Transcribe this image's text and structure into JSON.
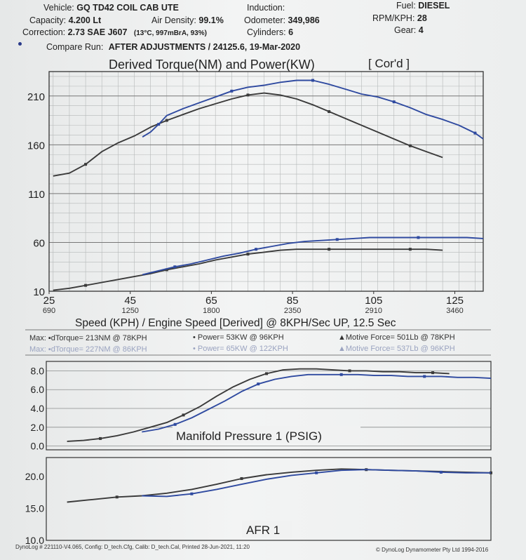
{
  "header": {
    "vehicle_label": "Vehicle:",
    "vehicle": "GQ TD42 COIL CAB UTE",
    "capacity_label": "Capacity:",
    "capacity": "4.200 Lt",
    "correction_label": "Correction:",
    "correction": "2.73 SAE J607",
    "correction_cond": "(13°C, 997mBrA, 93%)",
    "air_density_label": "Air Density:",
    "air_density": "99.1%",
    "induction_label": "Induction:",
    "odometer_label": "Odometer:",
    "odometer": "349,986",
    "cylinders_label": "Cylinders:",
    "cylinders": "6",
    "fuel_label": "Fuel:",
    "fuel": "DIESEL",
    "rpm_kph_label": "RPM/KPH:",
    "rpm_kph": "28",
    "gear_label": "Gear:",
    "gear": "4",
    "compare_label": "Compare Run:",
    "compare_run": "AFTER ADJUSTMENTS / 24125.6, 19-Mar-2020"
  },
  "chart_data": [
    {
      "type": "line",
      "title": "Derived Torque(NM) and Power(KW)",
      "title_note": "[ Cor'd ]",
      "xlabel": "Speed (KPH) / Engine Speed [Derived] @ 8KPH/Sec UP, 12.5 Sec",
      "xticks": [
        25,
        45,
        65,
        85,
        105,
        125
      ],
      "xticks_rpm": [
        "690",
        "1250",
        "1800",
        "2350",
        "2910",
        "3460"
      ],
      "xlim": [
        25,
        132
      ],
      "yticks": [
        10,
        60,
        110,
        160,
        210
      ],
      "ylim": [
        10,
        235
      ],
      "grid": true,
      "series": [
        {
          "color": "#3a3a3a",
          "x": [
            26,
            30,
            34,
            38,
            42,
            46,
            50,
            54,
            58,
            62,
            66,
            70,
            74,
            78,
            82,
            86,
            90,
            94,
            98,
            102,
            106,
            110,
            114,
            118,
            122
          ],
          "y": [
            128,
            131,
            140,
            153,
            162,
            169,
            178,
            185,
            191,
            197,
            202,
            207,
            211,
            213,
            211,
            207,
            201,
            194,
            187,
            180,
            173,
            166,
            159,
            153,
            147
          ]
        },
        {
          "color": "#2f4aa0",
          "x": [
            48,
            50,
            52,
            54,
            58,
            62,
            66,
            70,
            74,
            78,
            82,
            86,
            90,
            94,
            98,
            102,
            106,
            110,
            114,
            118,
            122,
            126,
            130,
            132
          ],
          "y": [
            168,
            173,
            181,
            190,
            197,
            203,
            209,
            215,
            219,
            221,
            224,
            226,
            226,
            222,
            217,
            212,
            209,
            204,
            198,
            191,
            186,
            180,
            172,
            166
          ]
        },
        {
          "color": "#3a3a3a",
          "x": [
            26,
            30,
            34,
            38,
            42,
            46,
            50,
            54,
            58,
            62,
            66,
            70,
            74,
            78,
            82,
            86,
            90,
            94,
            98,
            102,
            106,
            110,
            114,
            118,
            122
          ],
          "y": [
            11,
            13,
            16,
            19,
            22,
            25,
            28,
            32,
            35,
            38,
            42,
            45,
            48,
            50,
            52,
            53,
            53,
            53,
            53,
            53,
            53,
            53,
            53,
            53,
            52
          ]
        },
        {
          "color": "#2f4aa0",
          "x": [
            48,
            52,
            56,
            60,
            64,
            68,
            72,
            76,
            80,
            84,
            88,
            92,
            96,
            100,
            104,
            108,
            112,
            116,
            120,
            124,
            128,
            132
          ],
          "y": [
            27,
            31,
            35,
            38,
            42,
            46,
            49,
            53,
            56,
            59,
            61,
            62,
            63,
            64,
            65,
            65,
            65,
            65,
            65,
            65,
            65,
            64
          ]
        }
      ]
    },
    {
      "type": "line",
      "title": "Manifold Pressure 1 (PSIG)",
      "yticks": [
        0.0,
        2.0,
        4.0,
        6.0,
        8.0
      ],
      "ytick_labels": [
        "0.0",
        "2.0",
        "4.0",
        "6.0",
        "8.0"
      ],
      "xlim": [
        25,
        132
      ],
      "ylim": [
        -0.4,
        9.0
      ],
      "grid": true,
      "series": [
        {
          "color": "#3a3a3a",
          "x": [
            30,
            34,
            38,
            42,
            46,
            50,
            54,
            58,
            62,
            66,
            70,
            74,
            78,
            82,
            86,
            90,
            94,
            98,
            102,
            106,
            110,
            114,
            118,
            122
          ],
          "y": [
            0.5,
            0.6,
            0.8,
            1.1,
            1.5,
            2.0,
            2.5,
            3.3,
            4.2,
            5.3,
            6.3,
            7.1,
            7.7,
            8.1,
            8.2,
            8.2,
            8.1,
            8.0,
            8.0,
            7.9,
            7.9,
            7.8,
            7.8,
            7.7
          ]
        },
        {
          "color": "#2f4aa0",
          "x": [
            48,
            52,
            56,
            60,
            64,
            68,
            72,
            76,
            80,
            84,
            88,
            92,
            96,
            100,
            104,
            108,
            112,
            116,
            120,
            124,
            128,
            132
          ],
          "y": [
            1.5,
            1.8,
            2.3,
            3.0,
            3.9,
            4.8,
            5.8,
            6.6,
            7.1,
            7.4,
            7.6,
            7.6,
            7.6,
            7.6,
            7.5,
            7.5,
            7.4,
            7.4,
            7.4,
            7.3,
            7.3,
            7.2
          ]
        }
      ]
    },
    {
      "type": "line",
      "title": "AFR 1",
      "yticks": [
        10.0,
        15.0,
        20.0
      ],
      "ytick_labels": [
        "10.0",
        "15.0",
        "20.0"
      ],
      "xlim": [
        25,
        132
      ],
      "ylim": [
        10,
        23
      ],
      "grid": false,
      "series": [
        {
          "color": "#3a3a3a",
          "x": [
            30,
            36,
            42,
            48,
            54,
            60,
            66,
            72,
            78,
            84,
            90,
            96,
            102,
            108,
            114,
            120,
            126,
            132
          ],
          "y": [
            16.0,
            16.4,
            16.8,
            17.0,
            17.4,
            18.0,
            18.8,
            19.7,
            20.3,
            20.7,
            21.0,
            21.2,
            21.1,
            21.0,
            20.9,
            20.8,
            20.7,
            20.6
          ]
        },
        {
          "color": "#2f4aa0",
          "x": [
            48,
            54,
            60,
            66,
            72,
            78,
            84,
            90,
            96,
            102,
            108,
            114,
            120,
            126,
            132
          ],
          "y": [
            17.0,
            16.9,
            17.3,
            18.0,
            18.8,
            19.6,
            20.2,
            20.6,
            21.0,
            21.1,
            21.0,
            20.9,
            20.7,
            20.6,
            20.6
          ]
        }
      ]
    }
  ],
  "legend": {
    "row1": {
      "torque": "Max: ▪dTorque= 213NM @ 78KPH",
      "power": "• Power= 53KW @ 96KPH",
      "force": "▲Motive Force= 501Lb @ 78KPH"
    },
    "row2": {
      "torque": "Max: ▪dTorque= 227NM @ 86KPH",
      "power": "• Power= 65KW @ 122KPH",
      "force": "▲Motive Force= 537Lb @ 96KPH"
    }
  },
  "footer": {
    "left": "DynoLog # 221110-V4.065, Config: D_tech.Cfg, Calib: D_tech.Cal, Printed 28-Jun-2021, 11:20",
    "right": "© DynoLog Dynamometer Pty Ltd 1994-2016"
  },
  "colors": {
    "before": "#3a3a3a",
    "after": "#2f4aa0"
  }
}
